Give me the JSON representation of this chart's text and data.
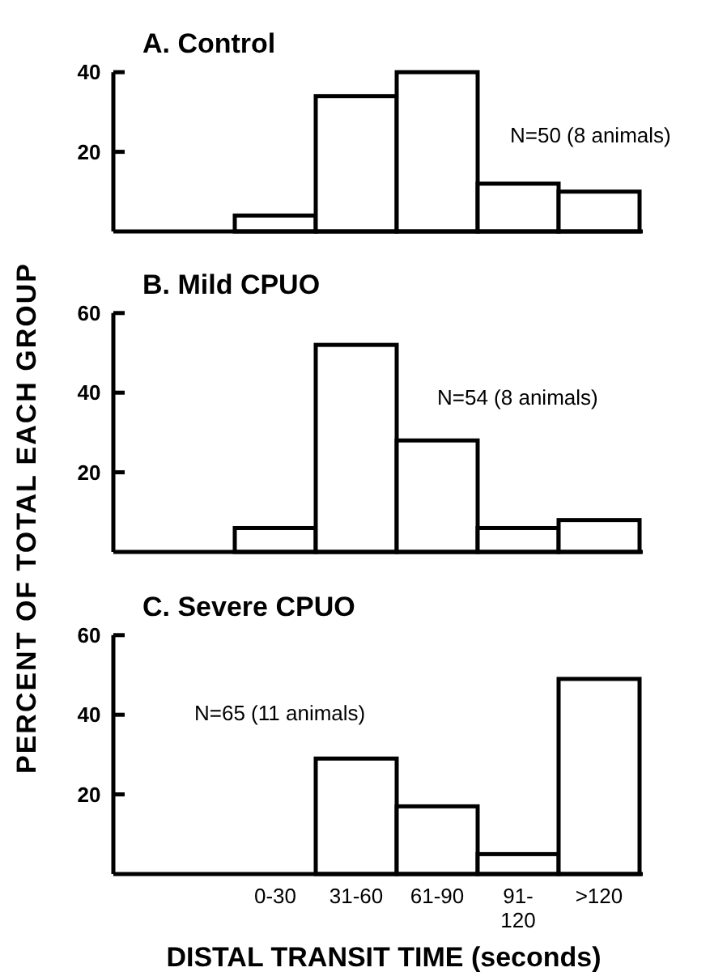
{
  "chart_data": [
    {
      "type": "bar",
      "title": "A. Control",
      "categories": [
        null,
        null,
        null,
        null,
        null
      ],
      "values": [
        4,
        34,
        40,
        12,
        10
      ],
      "color": "#ffffff",
      "ylim": [
        0,
        40
      ],
      "yticks": [
        20,
        40
      ],
      "annotations": [
        "N=50 (8 animals)"
      ]
    },
    {
      "type": "bar",
      "title": "B. Mild CPUO",
      "ylabel": "PERCENT OF TOTAL EACH GROUP",
      "categories": [
        null,
        null,
        null,
        null,
        null
      ],
      "values": [
        6,
        52,
        28,
        6,
        8
      ],
      "color": "#ffffff",
      "ylim": [
        0,
        60
      ],
      "yticks": [
        20,
        40,
        60
      ],
      "annotations": [
        "N=54 (8 animals)"
      ]
    },
    {
      "type": "bar",
      "title": "C. Severe CPUO",
      "xlabel": "DISTAL TRANSIT TIME (seconds)",
      "categories": [
        "0-30",
        "31-60",
        "61-90",
        "91-120",
        ">120"
      ],
      "values": [
        0,
        29,
        17,
        5,
        49
      ],
      "color": "#ffffff",
      "ylim": [
        0,
        60
      ],
      "yticks": [
        20,
        40,
        60
      ],
      "annotations": [
        "N=65 (11 animals)"
      ]
    }
  ]
}
